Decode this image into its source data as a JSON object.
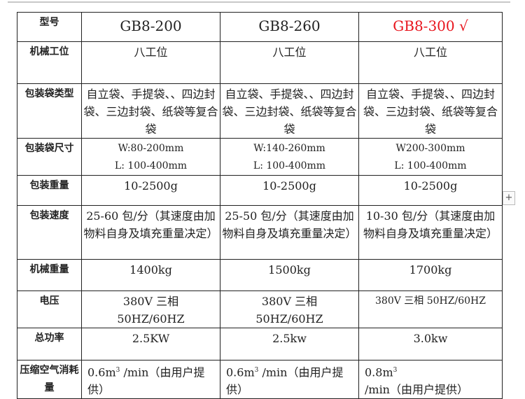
{
  "header": {
    "label": "型号",
    "models": [
      "GB8-200",
      "GB8-260",
      "GB8-300 √"
    ],
    "highlight_color": "#e8141c"
  },
  "rows": [
    {
      "label": "机械工位",
      "values": [
        "八工位",
        "八工位",
        "八工位"
      ]
    },
    {
      "label": "包装袋类型",
      "values": [
        "自立袋、手提袋、、四边封袋、三边封袋、纸袋等复合袋",
        "自立袋、手提袋、、四边封袋、三边封袋、纸袋等复合袋",
        "自立袋、手提袋、、四边封袋、三边封袋、纸袋等复合袋"
      ]
    },
    {
      "label": "包装袋尺寸",
      "values": [
        "W:80-200mm",
        "W:140-260mm",
        "W200-300mm"
      ],
      "values2": [
        "L: 100-400mm",
        "L: 100-400mm",
        "L: 100-400mm"
      ]
    },
    {
      "label": "包装重量",
      "values": [
        "10-2500g",
        "10-2500g",
        "10-2500g"
      ]
    },
    {
      "label": "包装速度",
      "values": [
        "25-60 包/分（其速度由加物料自身及填充重量决定）",
        "25-50 包/分（其速度由加物料自身及填充重量决定）",
        "10-30 包/分（其速度由加物料自身及填充重量决定）"
      ]
    },
    {
      "label": "机械重量",
      "values": [
        "1400kg",
        "1500kg",
        "1700kg"
      ]
    },
    {
      "label": "电压",
      "values": [
        "380V 三相 50HZ/60HZ",
        "380V 三相 50HZ/60HZ",
        "380V 三相 50HZ/60HZ"
      ]
    },
    {
      "label": "总功率",
      "values": [
        "2.5KW",
        "2.5kw",
        "3.0kw"
      ]
    },
    {
      "label": "压缩空气消耗量",
      "values_pre": [
        "0.6m",
        "0.6m",
        "0.8m"
      ],
      "sup": "3",
      "values": [
        "/min（由用户提供）",
        "/min（由用户提供）",
        "/min（由用户提供）"
      ]
    }
  ],
  "controls": {
    "add_label": "+"
  }
}
